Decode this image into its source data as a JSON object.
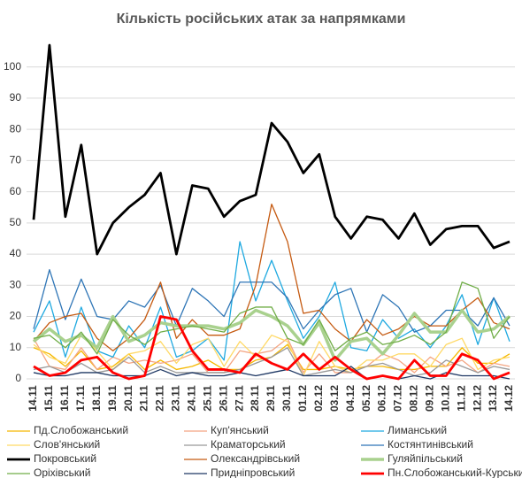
{
  "chart_data": {
    "type": "line",
    "title": "Кількість російських атак за напрямками",
    "categories": [
      "14.11",
      "15.11",
      "16.11",
      "17.11",
      "18.11",
      "19.11",
      "20.11",
      "21.11",
      "22.11",
      "23.11",
      "24.11",
      "25.11",
      "26.11",
      "27.11",
      "28.11",
      "29.11",
      "30.11",
      "01.12",
      "02.12",
      "03.12",
      "04.12",
      "05.12",
      "06.12",
      "07.12",
      "08.12",
      "09.12",
      "10.12",
      "11.12",
      "12.12",
      "13.12",
      "14.12"
    ],
    "ylim": [
      0,
      107
    ],
    "yticks": [
      0,
      10,
      20,
      30,
      40,
      50,
      60,
      70,
      80,
      90,
      100
    ],
    "grid": true,
    "legend": "bottom",
    "series": [
      {
        "name": "Пд.Слобожанський",
        "color": "#f5b800",
        "line_width": 1.3,
        "values": [
          10,
          8,
          4,
          9,
          3,
          4,
          8,
          3,
          6,
          3,
          4,
          6,
          3,
          3,
          6,
          7,
          11,
          3,
          3,
          4,
          3,
          4,
          4,
          3,
          3,
          4,
          4,
          10,
          5,
          5,
          8
        ]
      },
      {
        "name": "Куп'янський",
        "color": "#f4a582",
        "line_width": 1.3,
        "values": [
          13,
          4,
          3,
          10,
          3,
          7,
          5,
          6,
          5,
          6,
          8,
          2,
          2,
          9,
          8,
          9,
          13,
          2,
          8,
          2,
          2,
          4,
          8,
          6,
          2,
          7,
          4,
          6,
          2,
          5,
          4
        ]
      },
      {
        "name": "Лиманський",
        "color": "#1fa9e0",
        "line_width": 1.3,
        "values": [
          15,
          25,
          7,
          23,
          9,
          7,
          17,
          10,
          23,
          7,
          9,
          13,
          6,
          44,
          25,
          38,
          25,
          13,
          20,
          31,
          10,
          9,
          19,
          13,
          16,
          10,
          17,
          27,
          11,
          26,
          12
        ]
      },
      {
        "name": "Слов'янський",
        "color": "#ffd966",
        "line_width": 1.3,
        "values": [
          11,
          7,
          5,
          14,
          9,
          3,
          8,
          9,
          12,
          5,
          11,
          13,
          4,
          12,
          7,
          14,
          12,
          1,
          12,
          4,
          2,
          6,
          6,
          8,
          8,
          4,
          11,
          13,
          3,
          6,
          7
        ]
      },
      {
        "name": "Краматорський",
        "color": "#999999",
        "line_width": 1.3,
        "values": [
          3,
          4,
          2,
          5,
          2,
          3,
          7,
          2,
          4,
          2,
          2,
          2,
          2,
          3,
          5,
          7,
          10,
          1,
          2,
          3,
          2,
          4,
          5,
          3,
          1,
          2,
          6,
          4,
          2,
          4,
          3
        ]
      },
      {
        "name": "Костянтинівський",
        "color": "#2e75b6",
        "line_width": 1.3,
        "values": [
          16,
          35,
          19,
          32,
          20,
          19,
          25,
          23,
          30,
          17,
          29,
          25,
          20,
          31,
          31,
          31,
          26,
          16,
          22,
          27,
          29,
          15,
          27,
          23,
          15,
          17,
          22,
          22,
          17,
          26,
          17
        ]
      },
      {
        "name": "Покровський",
        "color": "#000000",
        "line_width": 2.8,
        "values": [
          51,
          107,
          52,
          75,
          40,
          50,
          55,
          59,
          66,
          40,
          62,
          61,
          52,
          57,
          59,
          82,
          76,
          66,
          72,
          52,
          45,
          52,
          51,
          45,
          53,
          43,
          48,
          49,
          49,
          42,
          44
        ]
      },
      {
        "name": "Олександрівський",
        "color": "#c55a11",
        "line_width": 1.3,
        "values": [
          12,
          18,
          20,
          21,
          13,
          9,
          13,
          19,
          31,
          13,
          19,
          14,
          14,
          16,
          30,
          56,
          44,
          21,
          22,
          16,
          12,
          19,
          14,
          16,
          20,
          17,
          17,
          22,
          26,
          18,
          16
        ]
      },
      {
        "name": "Гуляйпільський",
        "color": "#a9d18e",
        "line_width": 3.5,
        "values": [
          12,
          16,
          12,
          14,
          10,
          20,
          12,
          14,
          18,
          17,
          17,
          17,
          16,
          18,
          22,
          20,
          17,
          11,
          18,
          6,
          12,
          13,
          8,
          14,
          21,
          15,
          15,
          22,
          15,
          16,
          20
        ]
      },
      {
        "name": "Оріхівський",
        "color": "#70ad47",
        "line_width": 1.3,
        "values": [
          13,
          14,
          10,
          15,
          8,
          19,
          14,
          11,
          15,
          16,
          17,
          16,
          15,
          21,
          23,
          23,
          13,
          11,
          19,
          9,
          13,
          15,
          11,
          12,
          14,
          11,
          15,
          31,
          29,
          13,
          20
        ]
      },
      {
        "name": "Придніпровський",
        "color": "#1f3864",
        "line_width": 1.3,
        "values": [
          2,
          1,
          1,
          2,
          2,
          1,
          1,
          1,
          3,
          1,
          2,
          1,
          1,
          2,
          1,
          2,
          3,
          1,
          1,
          1,
          4,
          0,
          1,
          0,
          1,
          0,
          2,
          1,
          1,
          1,
          0
        ]
      },
      {
        "name": "Пн.Слобожанський-Курський",
        "color": "#ff0000",
        "line_width": 2.8,
        "values": [
          4,
          1,
          2,
          6,
          7,
          2,
          0,
          1,
          20,
          19,
          9,
          3,
          3,
          2,
          8,
          5,
          3,
          8,
          3,
          7,
          3,
          0,
          1,
          0,
          6,
          1,
          1,
          8,
          6,
          0,
          2
        ]
      }
    ]
  }
}
